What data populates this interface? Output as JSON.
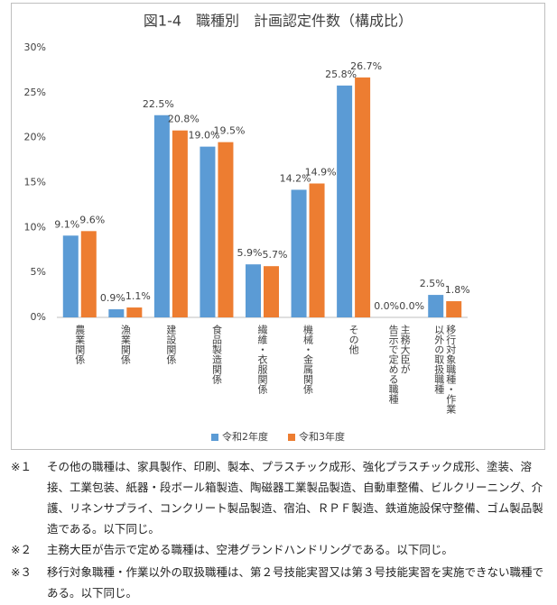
{
  "chart_data": {
    "type": "bar",
    "title": "図1-4　職種別　計画認定件数（構成比）",
    "categories": [
      "農業関係",
      "漁業関係",
      "建設関係",
      "食品製造関係",
      "繊維・衣服関係",
      "機械・金属関係",
      "その他",
      "主務大臣が\n告示で定める職種",
      "移行対象職種・作業\n以外の取扱職種"
    ],
    "series": [
      {
        "name": "令和2年度",
        "color": "#5b9bd5",
        "values": [
          9.1,
          0.9,
          22.5,
          19.0,
          5.9,
          14.2,
          25.8,
          0.0,
          2.5
        ],
        "value_labels": [
          "9.1%",
          "0.9%",
          "22.5%",
          "19.0%",
          "5.9%",
          "14.2%",
          "25.8%",
          "0.0%",
          "2.5%"
        ]
      },
      {
        "name": "令和3年度",
        "color": "#ed7d31",
        "values": [
          9.6,
          1.1,
          20.8,
          19.5,
          5.7,
          14.9,
          26.7,
          0.0,
          1.8
        ],
        "value_labels": [
          "9.6%",
          "1.1%",
          "20.8%",
          "19.5%",
          "5.7%",
          "14.9%",
          "26.7%",
          "0.0%",
          "1.8%"
        ]
      }
    ],
    "ylim": [
      0,
      30
    ],
    "yticks": [
      {
        "value": 0,
        "label": "0%"
      },
      {
        "value": 5,
        "label": "5%"
      },
      {
        "value": 10,
        "label": "10%"
      },
      {
        "value": 15,
        "label": "15%"
      },
      {
        "value": 20,
        "label": "20%"
      },
      {
        "value": 25,
        "label": "25%"
      },
      {
        "value": 30,
        "label": "30%"
      }
    ],
    "grid": false,
    "legend": "bottom"
  },
  "notes": [
    {
      "mark": "※１",
      "text": "その他の職種は、家具製作、印刷、製本、プラスチック成形、強化プラスチック成形、塗装、溶接、工業包装、紙器・段ボール箱製造、陶磁器工業製品製造、自動車整備、ビルクリーニング、介護、リネンサプライ、コンクリート製品製造、宿泊、ＲＰＦ製造、鉄道施設保守整備、ゴム製品製造である。以下同じ。"
    },
    {
      "mark": "※２",
      "text": "主務大臣が告示で定める職種は、空港グランドハンドリングである。以下同じ。"
    },
    {
      "mark": "※３",
      "text": "移行対象職種・作業以外の取扱職種は、第２号技能実習又は第３号技能実習を実施できない職種である。以下同じ。"
    }
  ]
}
